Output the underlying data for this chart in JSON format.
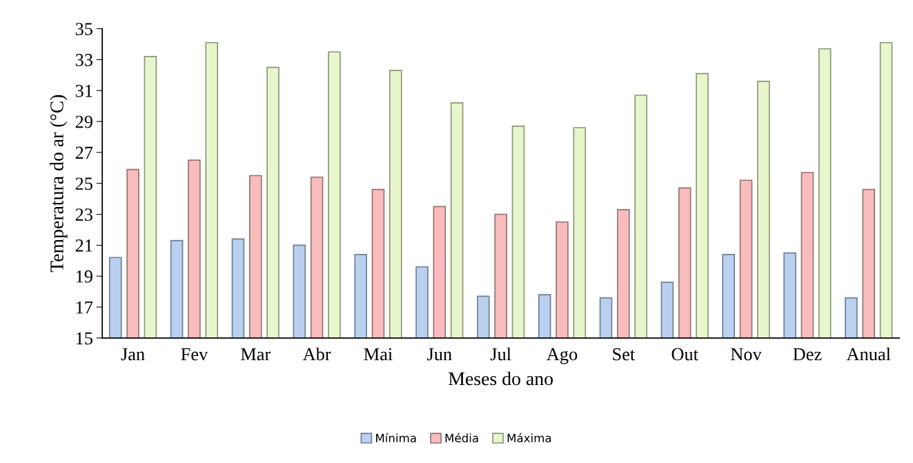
{
  "chart_data": {
    "type": "bar",
    "xlabel": "Meses do ano",
    "ylabel": "Temperatura do ar (°C)",
    "categories": [
      "Jan",
      "Fev",
      "Mar",
      "Abr",
      "Mai",
      "Jun",
      "Jul",
      "Ago",
      "Set",
      "Out",
      "Nov",
      "Dez",
      "Anual"
    ],
    "series": [
      {
        "name": "Mínima",
        "color": "#b9d0f0",
        "values": [
          20.2,
          21.3,
          21.4,
          21.0,
          20.4,
          19.6,
          17.7,
          17.8,
          17.6,
          18.6,
          20.4,
          20.5,
          17.6
        ]
      },
      {
        "name": "Média",
        "color": "#f9bcbc",
        "values": [
          25.9,
          26.5,
          25.5,
          25.4,
          24.6,
          23.5,
          23.0,
          22.5,
          23.3,
          24.7,
          25.2,
          25.7,
          24.6
        ]
      },
      {
        "name": "Máxima",
        "color": "#e8f6cc",
        "values": [
          33.2,
          34.1,
          32.5,
          33.5,
          32.3,
          30.2,
          28.7,
          28.6,
          30.7,
          32.1,
          31.6,
          33.7,
          34.1
        ]
      }
    ],
    "ylim": [
      15,
      35
    ],
    "yticks": [
      15,
      17,
      19,
      21,
      23,
      25,
      27,
      29,
      31,
      33,
      35
    ],
    "grid": false,
    "legend": "bottom"
  }
}
